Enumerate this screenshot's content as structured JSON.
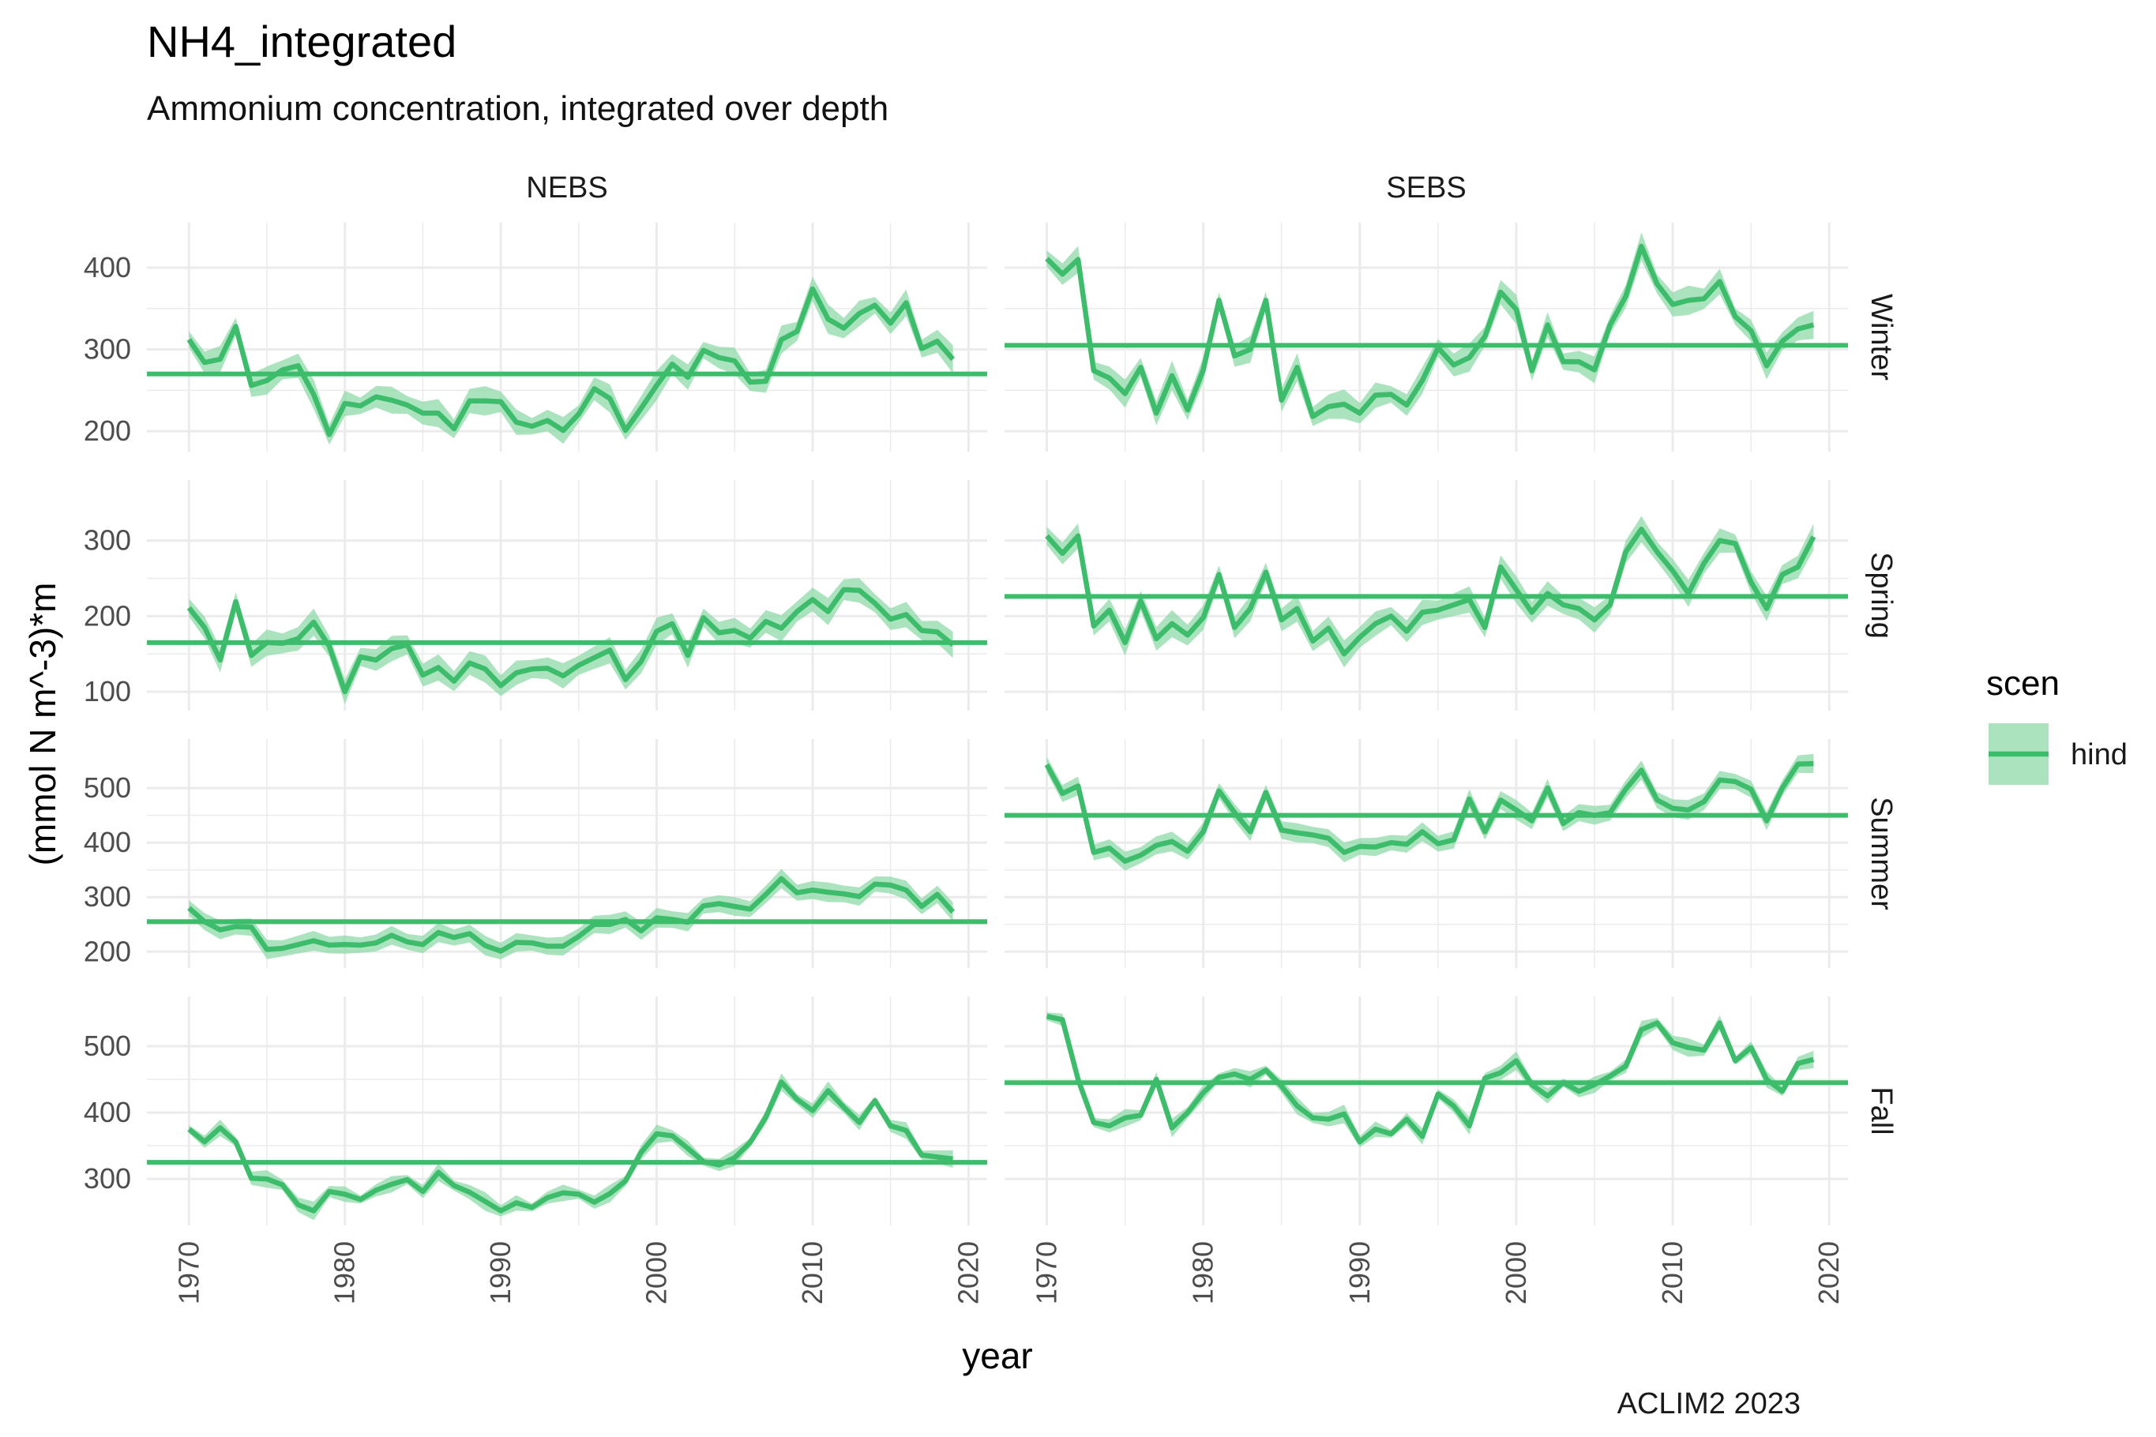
{
  "title": "NH4_integrated",
  "subtitle": "Ammonium concentration, integrated over depth",
  "caption": "ACLIM2 2023",
  "colors": {
    "line": "#3dbd6c",
    "band": "#8fd9a8",
    "grid": "#ebebeb",
    "background": "#ffffff"
  },
  "chart_data": {
    "type": "line",
    "xlabel": "year",
    "ylabel": "(mmol N m^-3)*m",
    "columns": [
      "NEBS",
      "SEBS"
    ],
    "rows": [
      "Winter",
      "Spring",
      "Summer",
      "Fall"
    ],
    "x_ticks": [
      1970,
      1980,
      1990,
      2000,
      2010,
      2020
    ],
    "xlim": [
      1967.3,
      2021.2
    ],
    "years": [
      1970,
      1971,
      1972,
      1973,
      1974,
      1975,
      1976,
      1977,
      1978,
      1979,
      1980,
      1981,
      1982,
      1983,
      1984,
      1985,
      1986,
      1987,
      1988,
      1989,
      1990,
      1991,
      1992,
      1993,
      1994,
      1995,
      1996,
      1997,
      1998,
      1999,
      2000,
      2001,
      2002,
      2003,
      2004,
      2005,
      2006,
      2007,
      2008,
      2009,
      2010,
      2011,
      2012,
      2013,
      2014,
      2015,
      2016,
      2017,
      2018,
      2019
    ],
    "legend": {
      "title": "scen",
      "entries": [
        "hind"
      ],
      "position": "right"
    },
    "grid": true,
    "band_halfwidth": {
      "Winter": [
        10,
        18
      ],
      "Spring": [
        12,
        18
      ],
      "Summer": [
        14,
        18
      ],
      "Fall": [
        6,
        14
      ]
    },
    "facets": {
      "Winter": {
        "yticks": [
          200,
          300,
          400
        ],
        "ylim": [
          175,
          455
        ],
        "NEBS": {
          "mean": 270,
          "values": [
            312,
            284,
            288,
            328,
            256,
            262,
            275,
            280,
            245,
            196,
            234,
            231,
            242,
            238,
            232,
            222,
            222,
            203,
            237,
            237,
            236,
            211,
            206,
            213,
            201,
            221,
            252,
            240,
            201,
            228,
            256,
            282,
            266,
            299,
            290,
            286,
            260,
            261,
            312,
            322,
            374,
            337,
            326,
            344,
            354,
            332,
            357,
            301,
            310,
            288
          ]
        },
        "SEBS": {
          "mean": 305,
          "values": [
            411,
            392,
            410,
            274,
            265,
            246,
            278,
            222,
            268,
            226,
            275,
            360,
            292,
            300,
            360,
            238,
            278,
            218,
            230,
            233,
            222,
            244,
            245,
            232,
            262,
            302,
            281,
            290,
            316,
            370,
            349,
            274,
            330,
            285,
            285,
            275,
            330,
            365,
            426,
            380,
            355,
            360,
            362,
            383,
            340,
            323,
            280,
            310,
            325,
            330
          ]
        }
      },
      "Spring": {
        "yticks": [
          100,
          200,
          300
        ],
        "ylim": [
          75,
          380
        ],
        "NEBS": {
          "mean": 165,
          "values": [
            211,
            185,
            142,
            219,
            148,
            165,
            164,
            170,
            192,
            160,
            100,
            146,
            142,
            157,
            162,
            122,
            132,
            114,
            138,
            130,
            108,
            125,
            130,
            131,
            121,
            135,
            145,
            155,
            116,
            140,
            180,
            190,
            148,
            198,
            178,
            181,
            171,
            193,
            184,
            206,
            222,
            206,
            235,
            234,
            217,
            196,
            202,
            181,
            179,
            162
          ]
        },
        "SEBS": {
          "mean": 226,
          "values": [
            306,
            283,
            306,
            187,
            208,
            165,
            220,
            170,
            190,
            175,
            198,
            255,
            185,
            210,
            258,
            195,
            210,
            167,
            184,
            150,
            172,
            190,
            200,
            180,
            205,
            208,
            215,
            222,
            185,
            265,
            235,
            205,
            230,
            215,
            210,
            195,
            215,
            285,
            315,
            285,
            260,
            230,
            270,
            300,
            296,
            245,
            210,
            255,
            265,
            305
          ]
        }
      },
      "Summer": {
        "yticks": [
          200,
          300,
          400,
          500
        ],
        "ylim": [
          170,
          590
        ],
        "NEBS": {
          "mean": 255,
          "values": [
            280,
            255,
            240,
            246,
            245,
            204,
            206,
            213,
            220,
            212,
            213,
            212,
            216,
            230,
            218,
            213,
            235,
            226,
            233,
            211,
            201,
            217,
            216,
            210,
            210,
            228,
            250,
            250,
            259,
            238,
            262,
            259,
            254,
            284,
            288,
            283,
            278,
            305,
            334,
            308,
            313,
            309,
            306,
            301,
            324,
            322,
            313,
            283,
            305,
            273
          ]
        },
        "SEBS": {
          "mean": 450,
          "values": [
            543,
            490,
            504,
            382,
            390,
            366,
            377,
            395,
            402,
            384,
            420,
            495,
            455,
            420,
            492,
            423,
            418,
            414,
            408,
            382,
            393,
            392,
            400,
            397,
            420,
            398,
            405,
            480,
            420,
            478,
            460,
            440,
            500,
            435,
            455,
            450,
            455,
            498,
            533,
            478,
            463,
            460,
            475,
            515,
            512,
            498,
            440,
            500,
            544,
            545
          ]
        }
      },
      "Fall": {
        "yticks": [
          300,
          400,
          500
        ],
        "ylim": [
          230,
          575
        ],
        "NEBS": {
          "mean": 325,
          "values": [
            375,
            356,
            377,
            356,
            301,
            300,
            291,
            261,
            252,
            281,
            277,
            269,
            283,
            292,
            299,
            281,
            310,
            290,
            280,
            266,
            252,
            264,
            257,
            272,
            279,
            277,
            265,
            278,
            297,
            340,
            368,
            365,
            346,
            326,
            321,
            332,
            355,
            393,
            446,
            420,
            403,
            433,
            408,
            385,
            418,
            380,
            373,
            336,
            333,
            330
          ]
        },
        "SEBS": {
          "mean": 445,
          "values": [
            545,
            540,
            450,
            385,
            380,
            392,
            396,
            450,
            377,
            400,
            430,
            453,
            458,
            450,
            464,
            440,
            410,
            392,
            390,
            398,
            356,
            375,
            368,
            390,
            364,
            428,
            410,
            380,
            452,
            460,
            478,
            442,
            425,
            445,
            432,
            442,
            455,
            470,
            525,
            535,
            505,
            498,
            494,
            535,
            478,
            498,
            450,
            432,
            474,
            480
          ]
        }
      }
    }
  }
}
